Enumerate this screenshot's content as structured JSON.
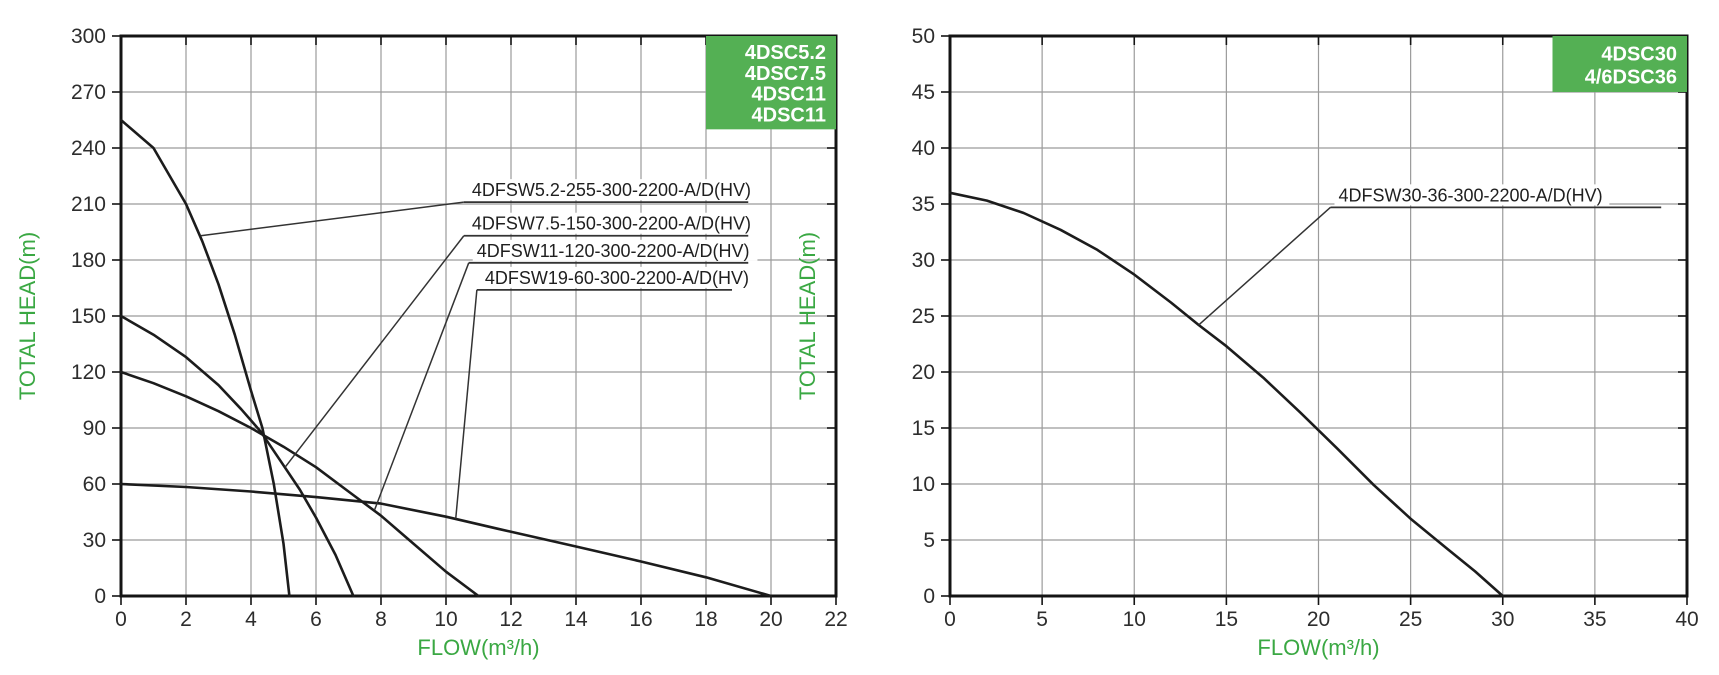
{
  "colors": {
    "background": "#ffffff",
    "grid": "#9b9b9b",
    "plot_border": "#141414",
    "curve": "#1c1c1c",
    "leader_line": "#333333",
    "tick_label_text": "#2d2d2d",
    "axis_title_green": "#3aa843",
    "legend_green": "#54b054",
    "legend_text": "#ffffff",
    "curve_label_text": "#1f1f1f"
  },
  "chart_data": [
    {
      "type": "line",
      "title": "",
      "xlabel": "FLOW(m³/h)",
      "ylabel": "TOTAL HEAD(m)",
      "xlim": [
        0,
        22
      ],
      "ylim": [
        0,
        300
      ],
      "xtick_step": 2,
      "ytick_step": 30,
      "grid": true,
      "legend_box": {
        "position": "top-right",
        "lines": [
          "4DSC5.2",
          "4DSC7.5",
          "4DSC11",
          "4DSC11"
        ],
        "rect": {
          "x1": 18.0,
          "x2": 22.0,
          "y1": 250.0,
          "y2": 300.0
        }
      },
      "series": [
        {
          "name": "4DFSW5.2-255-300-2200-A/D(HV)",
          "points": [
            [
              0,
              255
            ],
            [
              1,
              240
            ],
            [
              2,
              210
            ],
            [
              2.5,
              190
            ],
            [
              3,
              167
            ],
            [
              3.5,
              140
            ],
            [
              4,
              110
            ],
            [
              4.35,
              90
            ],
            [
              4.7,
              60
            ],
            [
              5,
              28
            ],
            [
              5.18,
              0
            ]
          ]
        },
        {
          "name": "4DFSW7.5-150-300-2200-A/D(HV)",
          "points": [
            [
              0,
              150
            ],
            [
              1,
              140
            ],
            [
              2,
              128
            ],
            [
              3,
              113
            ],
            [
              3.7,
              100
            ],
            [
              4.3,
              88
            ],
            [
              5,
              70
            ],
            [
              5.5,
              57
            ],
            [
              6,
              42
            ],
            [
              6.6,
              22
            ],
            [
              7.15,
              0
            ]
          ]
        },
        {
          "name": "4DFSW11-120-300-2200-A/D(HV)",
          "points": [
            [
              0,
              120
            ],
            [
              1,
              114
            ],
            [
              2,
              107
            ],
            [
              3,
              99
            ],
            [
              4,
              90
            ],
            [
              5,
              80
            ],
            [
              6,
              69
            ],
            [
              7,
              56
            ],
            [
              8,
              43
            ],
            [
              8.8,
              31
            ],
            [
              10,
              13
            ],
            [
              11,
              0
            ]
          ]
        },
        {
          "name": "4DFSW19-60-300-2200-A/D(HV)",
          "points": [
            [
              0,
              60
            ],
            [
              2,
              58.4
            ],
            [
              4,
              56
            ],
            [
              6,
              53
            ],
            [
              8,
              49.5
            ],
            [
              10,
              42.5
            ],
            [
              11.6,
              36
            ],
            [
              14,
              26.5
            ],
            [
              16,
              18.5
            ],
            [
              18,
              10
            ],
            [
              20,
              0
            ]
          ]
        }
      ],
      "series_labels": [
        {
          "text": "4DFSW5.2-255-300-2200-A/D(HV)",
          "x1": 10.55,
          "x2": 19.3,
          "underline_y": 211.0,
          "attach": [
            2.45,
            193
          ]
        },
        {
          "text": "4DFSW7.5-150-300-2200-A/D(HV)",
          "x1": 10.55,
          "x2": 19.3,
          "underline_y": 193.0,
          "attach": [
            5.05,
            69
          ]
        },
        {
          "text": "4DFSW11-120-300-2200-A/D(HV)",
          "x1": 10.7,
          "x2": 19.3,
          "underline_y": 178.5,
          "attach": [
            7.8,
            46
          ]
        },
        {
          "text": "4DFSW19-60-300-2200-A/D(HV)",
          "x1": 10.95,
          "x2": 18.8,
          "underline_y": 164.0,
          "attach": [
            10.3,
            41.5
          ]
        }
      ]
    },
    {
      "type": "line",
      "title": "",
      "xlabel": "FLOW(m³/h)",
      "ylabel": "TOTAL HEAD(m)",
      "xlim": [
        0,
        40
      ],
      "ylim": [
        0,
        50
      ],
      "xtick_step": 5,
      "ytick_step": 5,
      "grid": true,
      "legend_box": {
        "position": "top-right",
        "lines": [
          "4DSC30",
          "4/6DSC36"
        ],
        "rect": {
          "x1": 32.7,
          "x2": 40.0,
          "y1": 45.0,
          "y2": 50.0
        }
      },
      "series": [
        {
          "name": "4DFSW30-36-300-2200-A/D(HV)",
          "points": [
            [
              0,
              36
            ],
            [
              2,
              35.3
            ],
            [
              4,
              34.2
            ],
            [
              6,
              32.7
            ],
            [
              8,
              30.9
            ],
            [
              10,
              28.7
            ],
            [
              12,
              26.2
            ],
            [
              13.5,
              24.2
            ],
            [
              15,
              22.3
            ],
            [
              17,
              19.5
            ],
            [
              19,
              16.4
            ],
            [
              21,
              13.2
            ],
            [
              23,
              9.9
            ],
            [
              25,
              6.9
            ],
            [
              27,
              4.2
            ],
            [
              28.5,
              2.2
            ],
            [
              30,
              0
            ]
          ]
        }
      ],
      "series_labels": [
        {
          "text": "4DFSW30-36-300-2200-A/D(HV)",
          "x1": 20.65,
          "x2": 38.6,
          "underline_y": 34.7,
          "attach": [
            13.5,
            24.2
          ]
        }
      ]
    }
  ]
}
